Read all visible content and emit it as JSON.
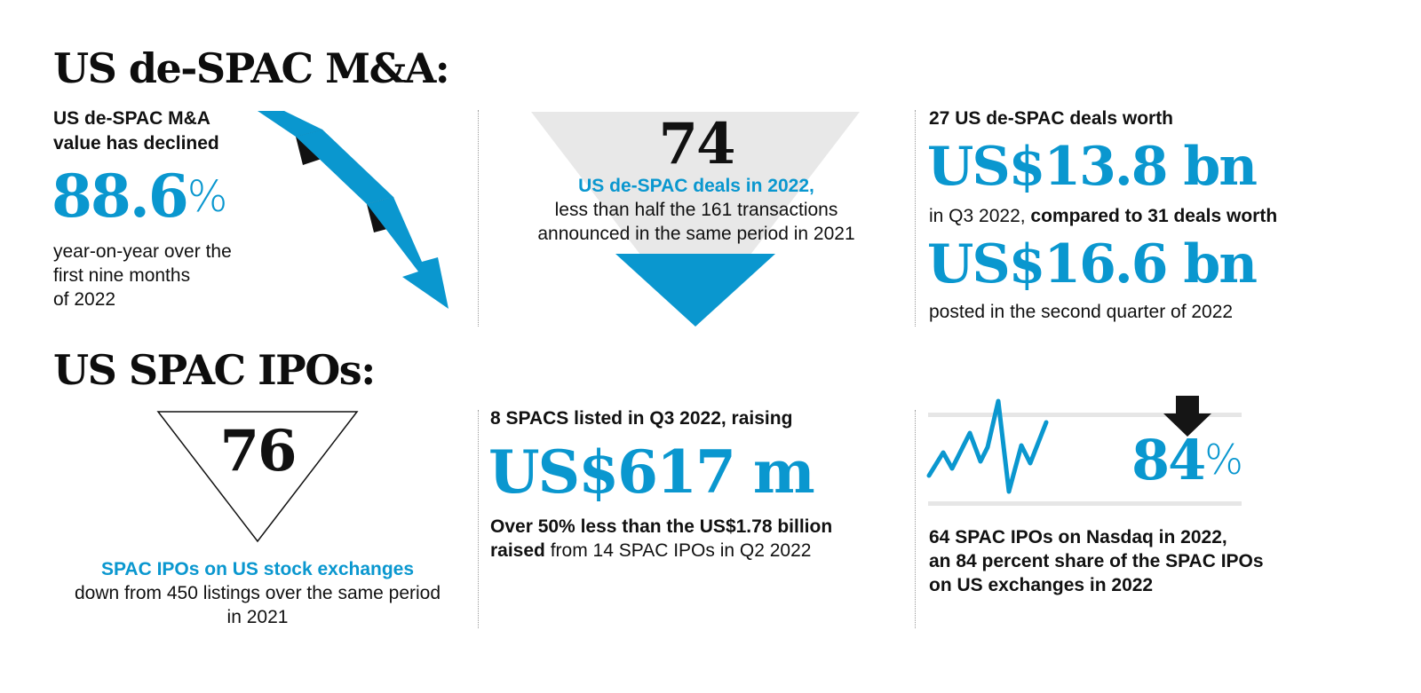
{
  "section1": {
    "heading": "US de-SPAC M&A:",
    "col1": {
      "lead_line1": "US de-SPAC M&A",
      "lead_line2": "value has declined",
      "stat_value": "88.6",
      "stat_unit": "%",
      "body_line1": "year-on-year over the",
      "body_line2": "first nine months",
      "body_line3": "of 2022",
      "icon": "declining-arrow-icon"
    },
    "col2": {
      "stat_value": "74",
      "highlight": "US de-SPAC deals in 2022,",
      "body_line1": "less than half the 161 transactions",
      "body_line2": "announced in the same period in 2021",
      "icon": "inverted-triangle-icon"
    },
    "col3": {
      "lead": "27 US de-SPAC deals worth",
      "stat1": "US$13.8 bn",
      "mid_normal": "in Q3 2022, ",
      "mid_bold": "compared to 31 deals worth",
      "stat2": "US$16.6 bn",
      "tail": "posted in the second quarter of 2022"
    }
  },
  "section2": {
    "heading": "US SPAC IPOs:",
    "col1": {
      "stat_value": "76",
      "highlight": "SPAC IPOs on US stock exchanges",
      "body_line1": "down from 450 listings over the same period",
      "body_line2": "in 2021",
      "icon": "outline-triangle-icon"
    },
    "col2": {
      "lead": "8 SPACS listed in Q3 2022, raising",
      "stat": "US$617 m",
      "body_line1": "Over 50% less than the US$1.78 billion",
      "body_line2_bold": "raised",
      "body_line2_normal": " from 14 SPAC IPOs in Q2 2022"
    },
    "col3": {
      "stat_value": "84",
      "stat_unit": "%",
      "body_line1": "64 SPAC IPOs on Nasdaq in 2022,",
      "body_line2": "an 84 percent share of the SPAC IPOs",
      "body_line3": "on US exchanges in 2022",
      "icons": [
        "zigzag-line-icon",
        "down-arrow-icon"
      ]
    }
  },
  "colors": {
    "accent": "#0a97cf",
    "text": "#111111",
    "gray": "#e6e6e6"
  }
}
